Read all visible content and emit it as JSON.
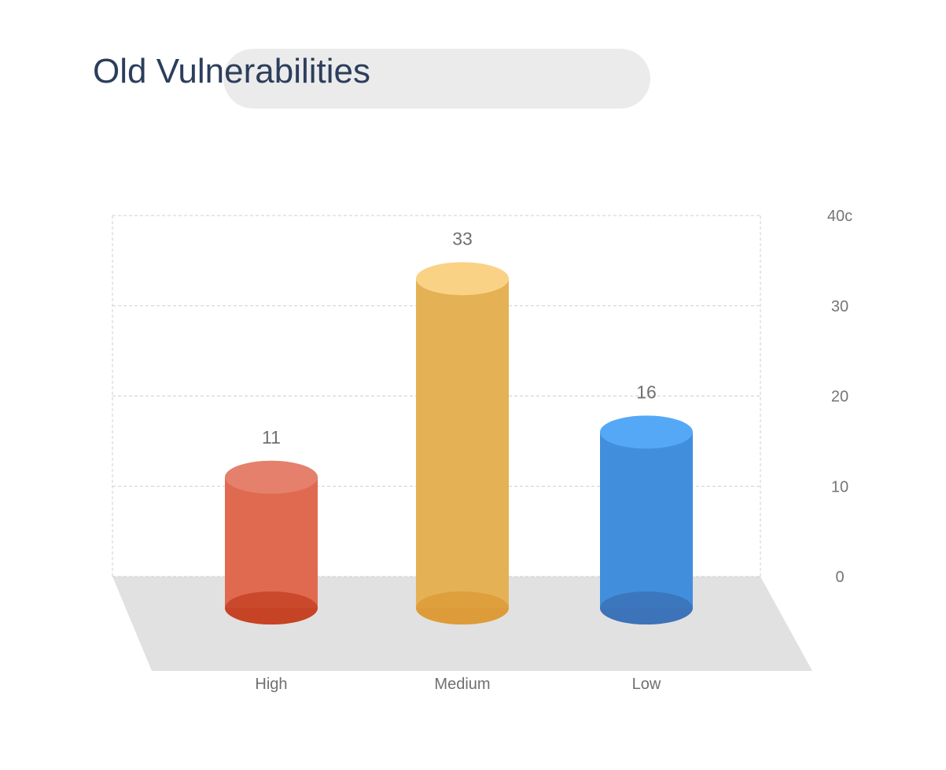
{
  "page": {
    "title": "Old Vulnerabilities"
  },
  "chart_data": {
    "type": "bar",
    "style": "3d-cylinder",
    "categories": [
      "High",
      "Medium",
      "Low"
    ],
    "values": [
      11,
      33,
      16
    ],
    "value_labels": [
      "11",
      "33",
      "16"
    ],
    "colors": [
      "#e06a50",
      "#e5b155",
      "#418fdc"
    ],
    "top_colors": [
      "#e4806b",
      "#fad286",
      "#55a8f6"
    ],
    "bottom_colors": [
      "#c54326",
      "#dd9c3a",
      "#3c73b8"
    ],
    "y_ticks": [
      "0",
      "10",
      "20",
      "30",
      "40c"
    ],
    "ylim": [
      0,
      40
    ],
    "grid": true,
    "axis_position": "right",
    "title": "Old Vulnerabilities",
    "xlabel": "",
    "ylabel": ""
  }
}
